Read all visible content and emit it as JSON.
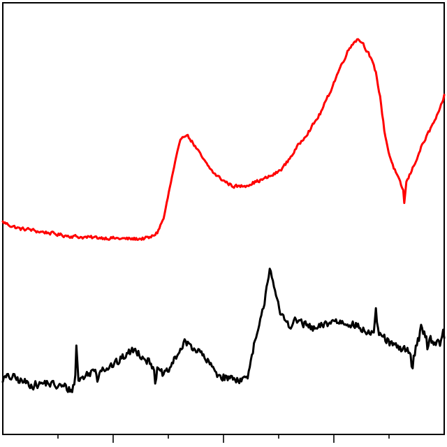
{
  "chart_data": {
    "type": "line",
    "title": "",
    "xlabel": "",
    "ylabel": "",
    "xlim": [
      0,
      100
    ],
    "ylim": [
      0,
      100
    ],
    "x_ticks_major": [
      25,
      50,
      75
    ],
    "x_ticks_minor": [
      12.5,
      37.5,
      62.5,
      87.5
    ],
    "grid": false,
    "legend": "none",
    "series": [
      {
        "color": "#ff0000",
        "noise": 0.55,
        "points": [
          [
            0,
            49.2
          ],
          [
            2,
            48.3
          ],
          [
            4,
            47.6
          ],
          [
            6,
            47.5
          ],
          [
            8,
            47.0
          ],
          [
            10,
            46.8
          ],
          [
            12,
            46.4
          ],
          [
            14,
            46.1
          ],
          [
            16,
            45.9
          ],
          [
            18,
            45.7
          ],
          [
            20,
            45.6
          ],
          [
            22,
            45.6
          ],
          [
            24,
            45.5
          ],
          [
            26,
            45.4
          ],
          [
            28,
            45.3
          ],
          [
            30,
            45.3
          ],
          [
            32,
            45.4
          ],
          [
            33.5,
            45.6
          ],
          [
            35,
            46.8
          ],
          [
            36.5,
            50.2
          ],
          [
            38,
            58.0
          ],
          [
            39.5,
            65.0
          ],
          [
            40.5,
            68.8
          ],
          [
            41.5,
            69.6
          ],
          [
            42.5,
            68.4
          ],
          [
            44,
            66.0
          ],
          [
            46,
            62.8
          ],
          [
            48,
            60.3
          ],
          [
            50,
            58.8
          ],
          [
            52,
            57.6
          ],
          [
            53.5,
            57.4
          ],
          [
            55,
            57.7
          ],
          [
            57,
            58.4
          ],
          [
            59,
            59.1
          ],
          [
            61,
            60.0
          ],
          [
            62.5,
            60.9
          ],
          [
            64,
            62.5
          ],
          [
            66,
            65.5
          ],
          [
            68,
            68.5
          ],
          [
            70,
            71.2
          ],
          [
            72,
            74.5
          ],
          [
            74,
            79.0
          ],
          [
            76,
            84.0
          ],
          [
            78,
            88.5
          ],
          [
            79.5,
            91.0
          ],
          [
            80.5,
            91.6
          ],
          [
            81.5,
            90.8
          ],
          [
            83,
            88.0
          ],
          [
            84.5,
            84.0
          ],
          [
            85.5,
            78.0
          ],
          [
            86.5,
            70.0
          ],
          [
            87.5,
            65.0
          ],
          [
            88.5,
            62.0
          ],
          [
            89.5,
            59.5
          ],
          [
            90.5,
            57.0
          ],
          [
            91.5,
            58.5
          ],
          [
            93,
            62.0
          ],
          [
            95,
            67.0
          ],
          [
            97,
            71.0
          ],
          [
            99,
            75.0
          ],
          [
            100,
            78.5
          ]
        ],
        "spikes": [
          [
            91.0,
            53.2
          ]
        ]
      },
      {
        "color": "#000000",
        "noise": 1.4,
        "points": [
          [
            0,
            12.9
          ],
          [
            2,
            13.3
          ],
          [
            4,
            12.4
          ],
          [
            6,
            11.7
          ],
          [
            8,
            11.5
          ],
          [
            10,
            12.0
          ],
          [
            12,
            11.2
          ],
          [
            14,
            11.0
          ],
          [
            15.5,
            10.2
          ],
          [
            16.5,
            12.3
          ],
          [
            18,
            13.1
          ],
          [
            20,
            14.5
          ],
          [
            22,
            15.3
          ],
          [
            24,
            15.6
          ],
          [
            26,
            16.6
          ],
          [
            28,
            18.6
          ],
          [
            30,
            19.6
          ],
          [
            32,
            18.0
          ],
          [
            34,
            16.0
          ],
          [
            35.5,
            14.2
          ],
          [
            37,
            13.8
          ],
          [
            38.5,
            16.5
          ],
          [
            40,
            19.4
          ],
          [
            41.5,
            21.3
          ],
          [
            43,
            20.3
          ],
          [
            45,
            18.6
          ],
          [
            47,
            16.0
          ],
          [
            49,
            13.7
          ],
          [
            51,
            13.0
          ],
          [
            53,
            13.0
          ],
          [
            55,
            12.8
          ],
          [
            56,
            15.0
          ],
          [
            57,
            21.0
          ],
          [
            58,
            24.2
          ],
          [
            59,
            29.0
          ],
          [
            60,
            36.0
          ],
          [
            60.5,
            38.8
          ],
          [
            61,
            37.0
          ],
          [
            62,
            31.0
          ],
          [
            63,
            27.4
          ],
          [
            65,
            25.5
          ],
          [
            67,
            26.4
          ],
          [
            69,
            25.0
          ],
          [
            71,
            24.2
          ],
          [
            73,
            25.5
          ],
          [
            75,
            26.3
          ],
          [
            77,
            26.0
          ],
          [
            79,
            25.9
          ],
          [
            81,
            24.5
          ],
          [
            83,
            23.5
          ],
          [
            84.5,
            23.9
          ],
          [
            86,
            22.6
          ],
          [
            88,
            20.9
          ],
          [
            90,
            19.6
          ],
          [
            92,
            19.6
          ],
          [
            93,
            17.8
          ],
          [
            94,
            21.8
          ],
          [
            95,
            24.0
          ],
          [
            96.5,
            22.0
          ],
          [
            98,
            21.5
          ],
          [
            100,
            22.0
          ]
        ],
        "spikes": [
          [
            16.7,
            21.5
          ],
          [
            21.5,
            12.0
          ],
          [
            34.6,
            12.0
          ],
          [
            84.5,
            28.5
          ],
          [
            92.7,
            13.7
          ],
          [
            94.7,
            26.2
          ],
          [
            96.3,
            19.6
          ],
          [
            99.1,
            19.5
          ],
          [
            99.7,
            24.4
          ]
        ]
      }
    ]
  }
}
